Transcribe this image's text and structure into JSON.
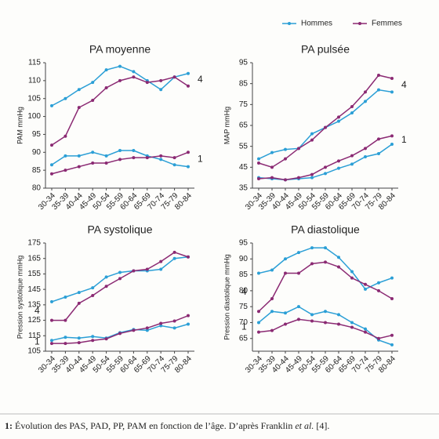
{
  "legend": [
    {
      "name": "Hommes",
      "color": "#2b9fd6"
    },
    {
      "name": "Femmes",
      "color": "#8b2a73"
    }
  ],
  "chart_data": [
    {
      "type": "line",
      "title": "PA moyenne",
      "ylabel": "PAM mmHg",
      "categories": [
        "30-34",
        "35-39",
        "40-44",
        "45-49",
        "50-54",
        "55-59",
        "60-64",
        "65-69",
        "70-74",
        "75-79",
        "80-84"
      ],
      "ylim": [
        80,
        115
      ],
      "yticks": [
        80,
        85,
        90,
        95,
        100,
        105,
        110,
        115
      ],
      "groups": [
        {
          "label": "4",
          "values": [
            [
              103,
              105,
              107.5,
              109.5,
              113,
              114,
              112.5,
              110,
              107.5,
              111,
              112
            ],
            [
              92,
              94.5,
              102.5,
              104.5,
              108,
              110,
              111,
              109.5,
              110,
              111,
              108.5
            ]
          ]
        },
        {
          "label": "1",
          "values": [
            [
              86.5,
              89,
              89,
              90,
              89,
              90.5,
              90.5,
              89,
              88,
              86.5,
              86
            ],
            [
              84,
              85,
              86,
              87,
              87,
              88,
              88.5,
              88.5,
              89,
              88.5,
              90
            ]
          ]
        }
      ]
    },
    {
      "type": "line",
      "title": "PA pulsée",
      "ylabel": "MAP mmHg",
      "categories": [
        "30-34",
        "35-39",
        "40-44",
        "45-49",
        "50-54",
        "55-59",
        "60-64",
        "65-69",
        "70-74",
        "75-79",
        "80-84"
      ],
      "ylim": [
        35,
        95
      ],
      "yticks": [
        35,
        45,
        55,
        65,
        75,
        85,
        95
      ],
      "groups": [
        {
          "label": "4",
          "values": [
            [
              49,
              52,
              53.5,
              54,
              61,
              64,
              67,
              71,
              76.5,
              82,
              81
            ],
            [
              47,
              45,
              49,
              54,
              58,
              64,
              69,
              74,
              81,
              89,
              87.5
            ]
          ]
        },
        {
          "label": "1",
          "values": [
            [
              40,
              39.5,
              39,
              39.5,
              40,
              42,
              44.5,
              46.5,
              50,
              51.5,
              56
            ],
            [
              39.5,
              40,
              39,
              40,
              41.5,
              45,
              48,
              50.5,
              54,
              58.5,
              60
            ]
          ]
        }
      ]
    },
    {
      "type": "line",
      "title": "PA systolique",
      "ylabel": "Pression systolique mmHg",
      "categories": [
        "30-34",
        "35-39",
        "40-44",
        "45-49",
        "50-54",
        "55-59",
        "60-64",
        "65-69",
        "70-74",
        "75-79",
        "80-84"
      ],
      "ylim": [
        105,
        175
      ],
      "yticks": [
        105,
        115,
        125,
        135,
        145,
        155,
        165,
        175
      ],
      "groups": [
        {
          "label": "4",
          "values": [
            [
              137,
              140,
              143,
              146,
              153,
              156,
              157,
              157,
              158,
              165,
              166
            ],
            [
              125,
              125,
              136,
              141,
              147,
              152,
              157,
              158,
              163,
              169,
              166
            ]
          ]
        },
        {
          "label": "1",
          "values": [
            [
              112,
              114,
              113.5,
              114.5,
              113.5,
              117,
              119,
              118.5,
              121.5,
              120,
              122.5
            ],
            [
              110,
              110,
              110.5,
              112,
              113,
              116.5,
              118.5,
              120,
              123,
              124.5,
              128
            ]
          ]
        }
      ]
    },
    {
      "type": "line",
      "title": "PA diastolique",
      "ylabel": "Pression diastolique mmHg",
      "categories": [
        "30-34",
        "35-39",
        "40-44",
        "45-49",
        "50-54",
        "55-59",
        "60-64",
        "65-69",
        "70-74",
        "75-79",
        "80-84"
      ],
      "ylim": [
        61,
        95
      ],
      "yticks": [
        65,
        70,
        75,
        80,
        85,
        90,
        95
      ],
      "groups": [
        {
          "label": "4",
          "values": [
            [
              85.5,
              86.5,
              90,
              92,
              93.5,
              93.5,
              90.5,
              86,
              80.5,
              82.5,
              84
            ],
            [
              73.5,
              77.5,
              85.5,
              85.5,
              88.5,
              89,
              87.5,
              84,
              82,
              80,
              77.5
            ]
          ]
        },
        {
          "label": "1",
          "values": [
            [
              70,
              73.5,
              73,
              75,
              72.5,
              73.5,
              72.5,
              70,
              68,
              64.5,
              63
            ],
            [
              67,
              67.5,
              69.5,
              71,
              70.5,
              70,
              69.5,
              68.5,
              67,
              65,
              66
            ]
          ]
        }
      ]
    }
  ],
  "caption": {
    "number": "1:",
    "text": " Évolution des PAS, PAD, PP, PAM en fonction de l’âge. D’après Franklin ",
    "italic": "et al.",
    "end": " [4]."
  }
}
